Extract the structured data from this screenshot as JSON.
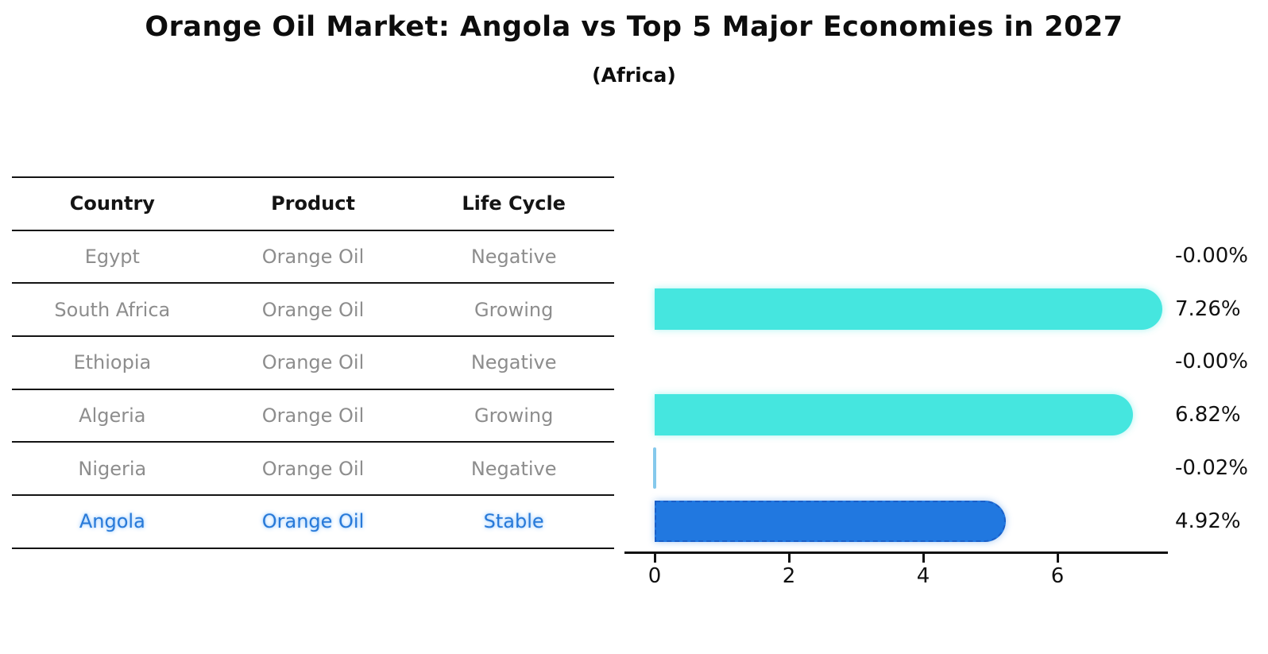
{
  "title": "Orange Oil Market: Angola vs Top 5 Major Economies in 2027",
  "subtitle": "(Africa)",
  "table": {
    "headers": [
      "Country",
      "Product",
      "Life Cycle"
    ],
    "rows": [
      {
        "country": "Egypt",
        "product": "Orange Oil",
        "life_cycle": "Negative",
        "highlight": false
      },
      {
        "country": "South Africa",
        "product": "Orange Oil",
        "life_cycle": "Growing",
        "highlight": false
      },
      {
        "country": "Ethiopia",
        "product": "Orange Oil",
        "life_cycle": "Negative",
        "highlight": false
      },
      {
        "country": "Algeria",
        "product": "Orange Oil",
        "life_cycle": "Growing",
        "highlight": false
      },
      {
        "country": "Nigeria",
        "product": "Orange Oil",
        "life_cycle": "Negative",
        "highlight": false
      },
      {
        "country": "Angola",
        "product": "Orange Oil",
        "life_cycle": "Stable",
        "highlight": true
      }
    ]
  },
  "chart_data": {
    "type": "bar",
    "orientation": "horizontal",
    "title": "Orange Oil Market: Angola vs Top 5 Major Economies in 2027",
    "subtitle": "(Africa)",
    "categories": [
      "Egypt",
      "South Africa",
      "Ethiopia",
      "Algeria",
      "Nigeria",
      "Angola"
    ],
    "values": [
      -0.0,
      7.26,
      -0.0,
      6.82,
      -0.02,
      4.92
    ],
    "value_labels": [
      "-0.00%",
      "7.26%",
      "-0.00%",
      "6.82%",
      "-0.02%",
      "4.92%"
    ],
    "unit": "%",
    "x_ticks": [
      0,
      2,
      4,
      6
    ],
    "xlim": [
      0,
      7.65
    ],
    "grid": false,
    "legend": "none",
    "highlight_index": 5,
    "highlight_category": "Angola"
  },
  "colors": {
    "bar_positive": "#45E6DF",
    "bar_highlight": "#2178E0",
    "bar_highlight_border": "#1a5fc8",
    "bar_negative_sliver": "#85C9EC",
    "highlight_text": "#2879D8",
    "table_text": "#8d8d8d",
    "header_text": "#141414",
    "axis": "#111111"
  }
}
